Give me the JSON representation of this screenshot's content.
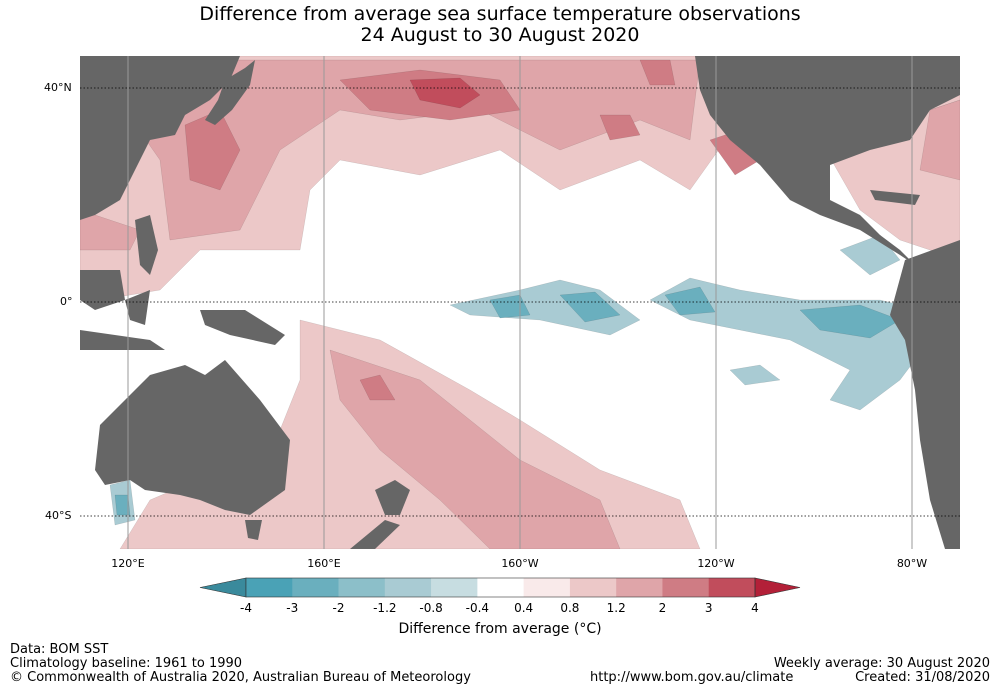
{
  "title": {
    "line1": "Difference from average sea surface temperature observations",
    "line2": "24 August to 30 August 2020"
  },
  "axes": {
    "lat_labels": [
      "40°N",
      "0°",
      "40°S"
    ],
    "lon_labels": [
      "120°E",
      "160°E",
      "160°W",
      "120°W",
      "80°W"
    ]
  },
  "colorbar": {
    "label": "Difference from average (°C)",
    "ticks": [
      "-4",
      "-3",
      "-2",
      "-1.2",
      "-0.8",
      "-0.4",
      "0.4",
      "0.8",
      "1.2",
      "2",
      "3",
      "4"
    ],
    "colors": {
      "under": "#3a8a9c",
      "bins": [
        "#4aa2b6",
        "#6aafbe",
        "#8cbfc9",
        "#a9cbd3",
        "#c7dde1",
        "#ffffff",
        "#f9eaea",
        "#ecc8c8",
        "#dfa5a9",
        "#cf7c84",
        "#c14d5c"
      ],
      "over": "#b32038"
    }
  },
  "map_colors": {
    "land": "#666666",
    "ocean": "#ffffff",
    "grid": "#999999"
  },
  "footer": {
    "data_source": "Data: BOM SST",
    "baseline": "Climatology baseline: 1961 to 1990",
    "copyright": "© Commonwealth of Australia 2020, Australian Bureau of Meteorology",
    "url": "http://www.bom.gov.au/climate",
    "weekly": "Weekly average: 30 August 2020",
    "created": "Created: 31/08/2020"
  }
}
